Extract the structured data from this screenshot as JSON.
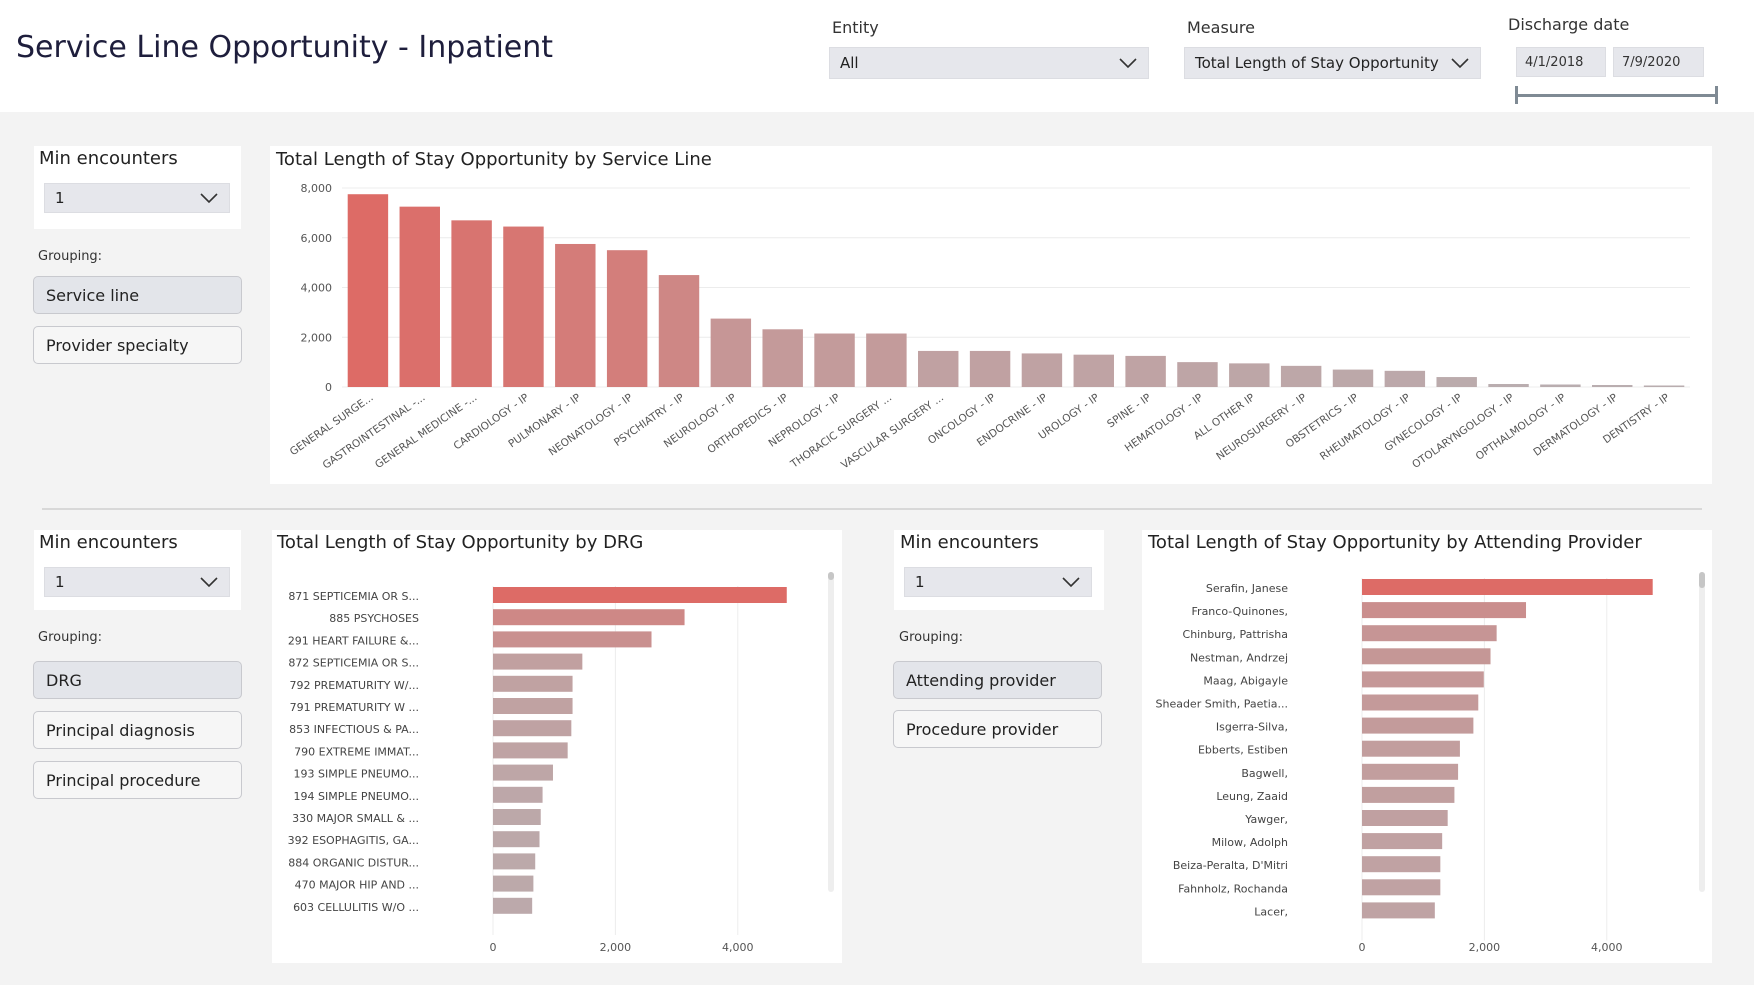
{
  "header": {
    "title": "Service Line Opportunity - Inpatient",
    "entity": {
      "label": "Entity",
      "value": "All"
    },
    "measure": {
      "label": "Measure",
      "value": "Total Length of Stay Opportunity"
    },
    "discharge": {
      "label": "Discharge date",
      "start": "4/1/2018",
      "end": "7/9/2020"
    }
  },
  "service_slicer": {
    "min_label": "Min encounters",
    "min_value": "1",
    "grouping_label": "Grouping:",
    "buttons": [
      "Service line",
      "Provider specialty"
    ]
  },
  "drg_slicer": {
    "min_label": "Min encounters",
    "min_value": "1",
    "grouping_label": "Grouping:",
    "buttons": [
      "DRG",
      "Principal diagnosis",
      "Principal procedure"
    ]
  },
  "provider_slicer": {
    "min_label": "Min encounters",
    "min_value": "1",
    "grouping_label": "Grouping:",
    "buttons": [
      "Attending provider",
      "Procedure provider"
    ]
  },
  "colors": {
    "high": "#dd6b66",
    "low": "#b9aeb0",
    "title": "#1e1e3c"
  },
  "chart_data": [
    {
      "type": "bar",
      "title": "Total Length of Stay Opportunity by Service Line",
      "categories": [
        "GENERAL SURGE...",
        "GASTROINTESTINAL -...",
        "GENERAL MEDICINE -...",
        "CARDIOLOGY - IP",
        "PULMONARY - IP",
        "NEONATOLOGY - IP",
        "PSYCHIATRY - IP",
        "NEUROLOGY - IP",
        "ORTHOPEDICS - IP",
        "NEPROLOGY - IP",
        "THORACIC SURGERY ...",
        "VASCULAR SURGERY ...",
        "ONCOLOGY - IP",
        "ENDOCRINE - IP",
        "UROLOGY - IP",
        "SPINE - IP",
        "HEMATOLOGY - IP",
        "ALL OTHER IP",
        "NEUROSURGERY - IP",
        "OBSTETRICS - IP",
        "RHEUMATOLOGY - IP",
        "GYNECOLOGY - IP",
        "OTOLARYNGOLOGY - IP",
        "OPTHALMOLOGY - IP",
        "DERMATOLOGY - IP",
        "DENTISTRY - IP"
      ],
      "values": [
        7750,
        7250,
        6700,
        6450,
        5750,
        5500,
        4500,
        2750,
        2320,
        2150,
        2150,
        1450,
        1450,
        1350,
        1300,
        1250,
        1000,
        950,
        850,
        700,
        650,
        400,
        120,
        100,
        80,
        60
      ],
      "yticks": [
        "0",
        "2,000",
        "4,000",
        "6,000",
        "8,000"
      ],
      "ylim": [
        0,
        8000
      ]
    },
    {
      "type": "bar",
      "orientation": "horizontal",
      "title": "Total Length of Stay Opportunity by DRG",
      "categories": [
        "871 SEPTICEMIA OR S...",
        "885 PSYCHOSES",
        "291 HEART FAILURE &...",
        "872 SEPTICEMIA OR S...",
        "792 PREMATURITY W/...",
        "791 PREMATURITY W ...",
        "853 INFECTIOUS & PA...",
        "790 EXTREME IMMAT...",
        "193 SIMPLE PNEUMO...",
        "194 SIMPLE PNEUMO...",
        "330 MAJOR SMALL & ...",
        "392 ESOPHAGITIS, GA...",
        "884 ORGANIC DISTUR...",
        "470 MAJOR HIP AND ...",
        "603 CELLULITIS W/O ..."
      ],
      "values": [
        4800,
        3130,
        2590,
        1460,
        1300,
        1300,
        1280,
        1220,
        980,
        810,
        780,
        760,
        690,
        660,
        640
      ],
      "xticks": [
        "0",
        "2,000",
        "4,000"
      ],
      "xlim": [
        0,
        5000
      ]
    },
    {
      "type": "bar",
      "orientation": "horizontal",
      "title": "Total Length of Stay Opportunity by Attending Provider",
      "categories": [
        "Serafin, Janese",
        "Franco-Quinones,",
        "Chinburg, Pattrisha",
        "Nestman, Andrzej",
        "Maag, Abigayle",
        "Sheader Smith, Paetia...",
        "Isgerra-Silva,",
        "Ebberts, Estiben",
        "Bagwell,",
        "Leung, Zaaid",
        "Yawger,",
        "Milow, Adolph",
        "Beiza-Peralta, D'Mitri",
        "Fahnholz, Rochanda",
        "Lacer,"
      ],
      "values": [
        4750,
        2680,
        2200,
        2100,
        1990,
        1900,
        1820,
        1600,
        1570,
        1510,
        1400,
        1310,
        1280,
        1280,
        1190
      ],
      "xticks": [
        "0",
        "2,000",
        "4,000"
      ],
      "xlim": [
        0,
        5000
      ]
    }
  ]
}
